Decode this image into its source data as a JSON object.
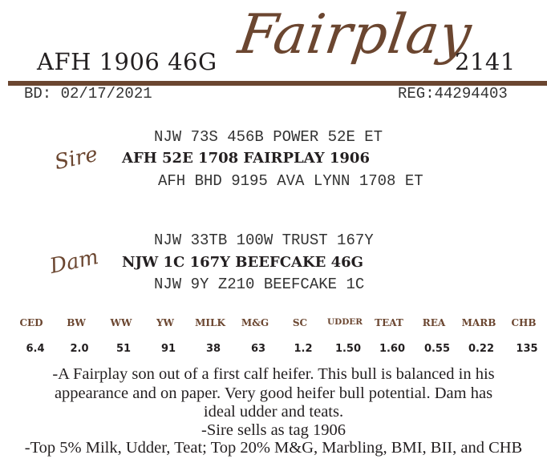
{
  "header": {
    "left_title": "AFH 1906 46G",
    "script_name": "Fairplay",
    "right_title": "2141",
    "birth_date": "BD: 02/17/2021",
    "registration": "REG:44294403",
    "accent_color": "#6b4630"
  },
  "sire": {
    "label": "Sire",
    "sire_of_sire": "NJW 73S 456B POWER 52E ET",
    "name": "AFH 52E 1708 FAIRPLAY 1906",
    "dam_of_sire": "AFH BHD 9195 AVA LYNN 1708 ET"
  },
  "dam": {
    "label": "Dam",
    "sire_of_dam": "NJW 33TB 100W TRUST 167Y",
    "name": "NJW 1C 167Y BEEFCAKE 46G",
    "dam_of_dam": "NJW 9Y Z210 BEEFCAKE 1C"
  },
  "epds": {
    "headers": [
      "CED",
      "BW",
      "WW",
      "YW",
      "MILK",
      "M&G",
      "SC",
      "UDDER",
      "TEAT",
      "REA",
      "MARB",
      "CHB"
    ],
    "values": [
      "6.4",
      "2.0",
      "51",
      "91",
      "38",
      "63",
      "1.2",
      "1.50",
      "1.60",
      "0.55",
      "0.22",
      "135"
    ]
  },
  "notes": [
    "-A Fairplay son out of a first calf heifer.  This bull is balanced in his",
    "appearance and on paper.  Very good heifer bull potential.  Dam has",
    "ideal udder and teats.",
    "-Sire sells as tag 1906",
    "-Top 5% Milk, Udder, Teat; Top 20% M&G, Marbling, BMI, BII, and CHB"
  ]
}
